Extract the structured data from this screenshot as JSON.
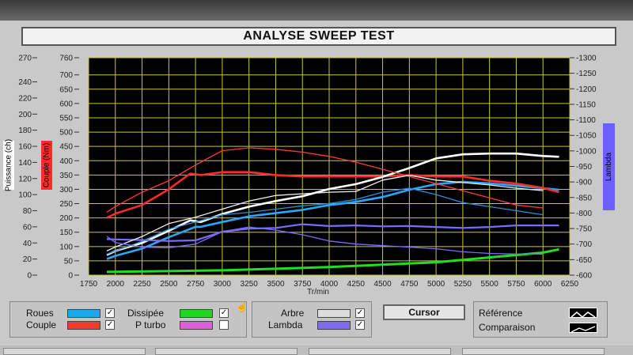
{
  "title": "ANALYSE SWEEP TEST",
  "chart_data": {
    "type": "line",
    "x_label": "Tr/min",
    "x_range": [
      1750,
      6250
    ],
    "x_ticks": [
      1750,
      2000,
      2250,
      2500,
      2750,
      3000,
      3250,
      3500,
      3750,
      4000,
      4250,
      4500,
      4750,
      5000,
      5250,
      5500,
      5750,
      6000,
      6250
    ],
    "axes": {
      "puissance": {
        "label": "Puissance (ch)",
        "range": [
          0,
          270
        ],
        "ticks": [
          0,
          20,
          40,
          60,
          80,
          100,
          120,
          140,
          160,
          180,
          200,
          220,
          240,
          270
        ]
      },
      "couple": {
        "label": "Couple (Nm)",
        "range": [
          0,
          760
        ],
        "ticks": [
          0,
          50,
          100,
          150,
          200,
          250,
          300,
          350,
          400,
          450,
          500,
          550,
          600,
          650,
          700,
          760
        ]
      },
      "lambda": {
        "label": "Lambda",
        "range": [
          600,
          1300
        ],
        "ticks": [
          600,
          650,
          700,
          750,
          800,
          850,
          900,
          950,
          1000,
          1050,
          1100,
          1150,
          1200,
          1250,
          1300
        ]
      }
    },
    "series": [
      {
        "name": "Roues",
        "axis": "puissance",
        "color": "#2aa6ff",
        "width": 2.6,
        "x": [
          1920,
          2000,
          2250,
          2500,
          2750,
          2800,
          3000,
          3250,
          3500,
          3750,
          4000,
          4250,
          4500,
          4750,
          5000,
          5250,
          5500,
          5750,
          6000,
          6150
        ],
        "y": [
          20,
          24,
          33,
          47,
          60,
          60,
          66,
          73,
          77,
          81,
          87,
          91,
          97,
          106,
          113,
          116,
          114,
          111,
          108,
          106
        ]
      },
      {
        "name": "Couple",
        "axis": "couple",
        "color": "#ff2b2b",
        "width": 2.6,
        "x": [
          1920,
          2000,
          2250,
          2500,
          2700,
          2800,
          3000,
          3250,
          3500,
          3750,
          4000,
          4250,
          4500,
          4750,
          5000,
          5250,
          5500,
          5750,
          6000,
          6150
        ],
        "y": [
          200,
          215,
          245,
          300,
          355,
          350,
          360,
          360,
          350,
          345,
          345,
          345,
          345,
          350,
          345,
          345,
          330,
          320,
          305,
          290
        ]
      },
      {
        "name": "Arbre",
        "axis": "puissance",
        "color": "#ffffff",
        "width": 2.6,
        "x": [
          1920,
          2000,
          2250,
          2500,
          2700,
          2800,
          3000,
          3250,
          3500,
          3750,
          4000,
          4250,
          4500,
          4750,
          5000,
          5250,
          5500,
          5750,
          6000,
          6150
        ],
        "y": [
          25,
          30,
          40,
          55,
          68,
          66,
          76,
          85,
          92,
          98,
          107,
          113,
          122,
          133,
          145,
          150,
          151,
          151,
          148,
          147
        ]
      },
      {
        "name": "Lambda",
        "axis": "lambda",
        "color": "#7b6bff",
        "width": 2.2,
        "x": [
          1920,
          2000,
          2250,
          2500,
          2750,
          3000,
          3250,
          3500,
          3750,
          4000,
          4250,
          4500,
          4750,
          5000,
          5250,
          5500,
          5750,
          6000,
          6150
        ],
        "y": [
          716,
          715,
          713,
          710,
          712,
          740,
          750,
          752,
          764,
          758,
          760,
          757,
          758,
          755,
          752,
          755,
          760,
          760,
          760
        ]
      },
      {
        "name": "Dissipée",
        "axis": "puissance",
        "color": "#22dd22",
        "width": 3,
        "x": [
          1920,
          2500,
          3000,
          3500,
          4000,
          4500,
          5000,
          5500,
          6000,
          6150
        ],
        "y": [
          4,
          5,
          6,
          8,
          10,
          13,
          16,
          22,
          28,
          32
        ]
      },
      {
        "name": "Comparaison Roues",
        "axis": "puissance",
        "color": "#2a8fe0",
        "width": 1.3,
        "x": [
          1920,
          2000,
          2250,
          2500,
          2750,
          3000,
          3250,
          3500,
          3750,
          4000,
          4250,
          4500,
          4750,
          5000,
          5250,
          5500,
          5750,
          6000
        ],
        "y": [
          26,
          30,
          42,
          57,
          66,
          75,
          78,
          82,
          86,
          89,
          94,
          103,
          108,
          100,
          90,
          85,
          80,
          75
        ]
      },
      {
        "name": "Comparaison Couple",
        "axis": "couple",
        "color": "#ff3a3a",
        "width": 1.3,
        "x": [
          1920,
          2000,
          2250,
          2500,
          2750,
          3000,
          3250,
          3500,
          3750,
          4000,
          4250,
          4500,
          4750,
          5000,
          5250,
          5500,
          5750,
          6000
        ],
        "y": [
          220,
          240,
          290,
          330,
          385,
          435,
          445,
          440,
          430,
          415,
          395,
          370,
          345,
          320,
          295,
          270,
          245,
          235
        ]
      },
      {
        "name": "Comparaison Arbre",
        "axis": "puissance",
        "color": "#f2f2f2",
        "width": 1.3,
        "x": [
          1920,
          2000,
          2250,
          2500,
          2750,
          3000,
          3250,
          3500,
          3750,
          4000,
          4250,
          4500,
          4750,
          5000,
          5250,
          5500,
          5750,
          6000
        ],
        "y": [
          30,
          35,
          48,
          64,
          72,
          82,
          92,
          99,
          101,
          103,
          104,
          118,
          124,
          118,
          115,
          112,
          108,
          105
        ]
      },
      {
        "name": "Comparaison Lambda",
        "axis": "lambda",
        "color": "#7b6bff",
        "width": 1.3,
        "x": [
          1920,
          2000,
          2250,
          2500,
          2750,
          3000,
          3250,
          3500,
          3750,
          4000,
          4250,
          4500,
          4750,
          5000,
          5250,
          5500,
          5750,
          6000
        ],
        "y": [
          725,
          705,
          690,
          688,
          700,
          740,
          755,
          745,
          730,
          710,
          700,
          695,
          690,
          685,
          675,
          670,
          668,
          668
        ]
      }
    ]
  },
  "axis_labels": {
    "puissance": "Puissance (ch)",
    "couple": "Couple (Nm)",
    "lambda": "Lambda",
    "x": "Tr/min"
  },
  "legend": {
    "roues": {
      "label": "Roues",
      "color": "#1aa8e8",
      "checked": true
    },
    "couple": {
      "label": "Couple",
      "color": "#ee3b2b",
      "checked": true
    },
    "dissipee": {
      "label": "Dissipée",
      "color": "#1fd51f",
      "checked": true
    },
    "pturbo": {
      "label": "P turbo",
      "color": "#dd5fd8",
      "checked": false
    },
    "arbre": {
      "label": "Arbre",
      "color": "#dcdcdc",
      "checked": true
    },
    "lambda": {
      "label": "Lambda",
      "color": "#7e6cf0",
      "checked": true
    }
  },
  "cursor_button": "Cursor",
  "modes": {
    "reference": "Référence",
    "comparaison": "Comparaison"
  },
  "check_mark": "✓"
}
